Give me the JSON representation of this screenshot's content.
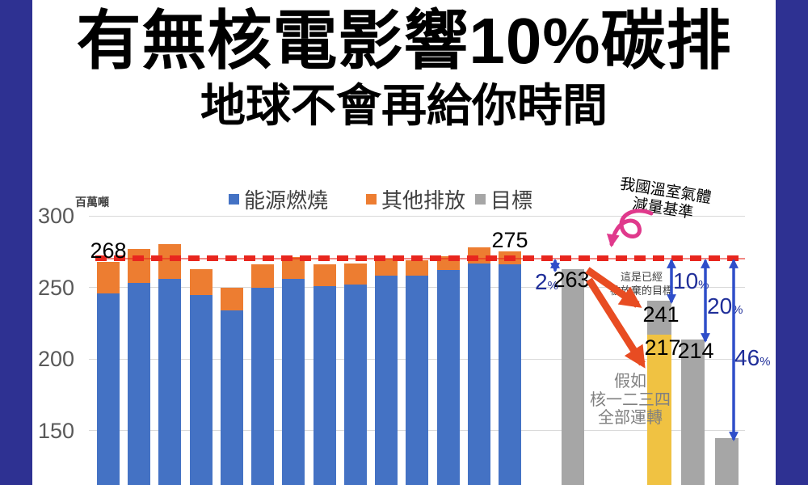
{
  "page": {
    "title": "有無核電影響10%碳排",
    "subtitle": "地球不會再給你時間"
  },
  "colors": {
    "border_navy": "#2E3192",
    "bar_blue": "#4472C4",
    "bar_orange": "#ED7D31",
    "bar_gray": "#A6A6A6",
    "bar_yellow": "#F0C242",
    "red_dashed_line": "#E8261E",
    "arrow_blue": "#2F4EC9",
    "percent_label_navy": "#1F2E99",
    "pink_arrow": "#E0398C",
    "orange_arrow": "#E84C22",
    "axis_tick_gray": "#595959",
    "gridline_gray": "#D9D9D9"
  },
  "chart_data": {
    "type": "bar",
    "unit_label": "百萬噸",
    "y_ticks": [
      300,
      250,
      200,
      150
    ],
    "y_axis_visible_range": [
      112,
      300
    ],
    "grid": true,
    "legend_position": "top",
    "legend": [
      {
        "label": "能源燃燒",
        "color_key": "bar_blue"
      },
      {
        "label": "其他排放",
        "color_key": "bar_orange"
      },
      {
        "label": "目標",
        "color_key": "bar_gray"
      }
    ],
    "baseline": {
      "value": 268,
      "label": "我國溫室氣體減量基準",
      "style": "red-dashed"
    },
    "stacked_series": {
      "names": [
        "能源燃燒",
        "其他排放"
      ],
      "energy_values": [
        246,
        253,
        256,
        245,
        234,
        250,
        256,
        251,
        252,
        258,
        258,
        262,
        267,
        266
      ],
      "total_values": [
        268,
        277,
        280,
        263,
        250,
        266,
        271,
        266,
        267,
        270,
        269,
        272,
        278,
        275
      ],
      "labeled_points": [
        {
          "index": 0,
          "label": "268"
        },
        {
          "index": 13,
          "label": "275"
        }
      ]
    },
    "target_bars": [
      {
        "value": 263,
        "label": "263",
        "color_key": "bar_gray"
      },
      {
        "value": 241,
        "label": "241",
        "color_key": "bar_gray"
      },
      {
        "value": 217,
        "label": "217",
        "color_key": "bar_yellow"
      },
      {
        "value": 214,
        "label": "214",
        "color_key": "bar_gray"
      },
      {
        "value": 145,
        "label": "",
        "color_key": "bar_gray"
      }
    ],
    "reduction_arrows": [
      {
        "pct": "2",
        "to_value": 263
      },
      {
        "pct": "10",
        "to_value": 241
      },
      {
        "pct": "20",
        "to_value": 214
      },
      {
        "pct": "46",
        "to_value": 145
      }
    ]
  },
  "annotations": {
    "baseline_l1": "我國溫室氣體",
    "baseline_l2": "減量基準",
    "abandoned_l1": "這是已經",
    "abandoned_l2": "被放棄的目標",
    "hypothetical_l1": "假如",
    "hypothetical_l2": "核一二三四",
    "hypothetical_l3": "全部運轉"
  }
}
